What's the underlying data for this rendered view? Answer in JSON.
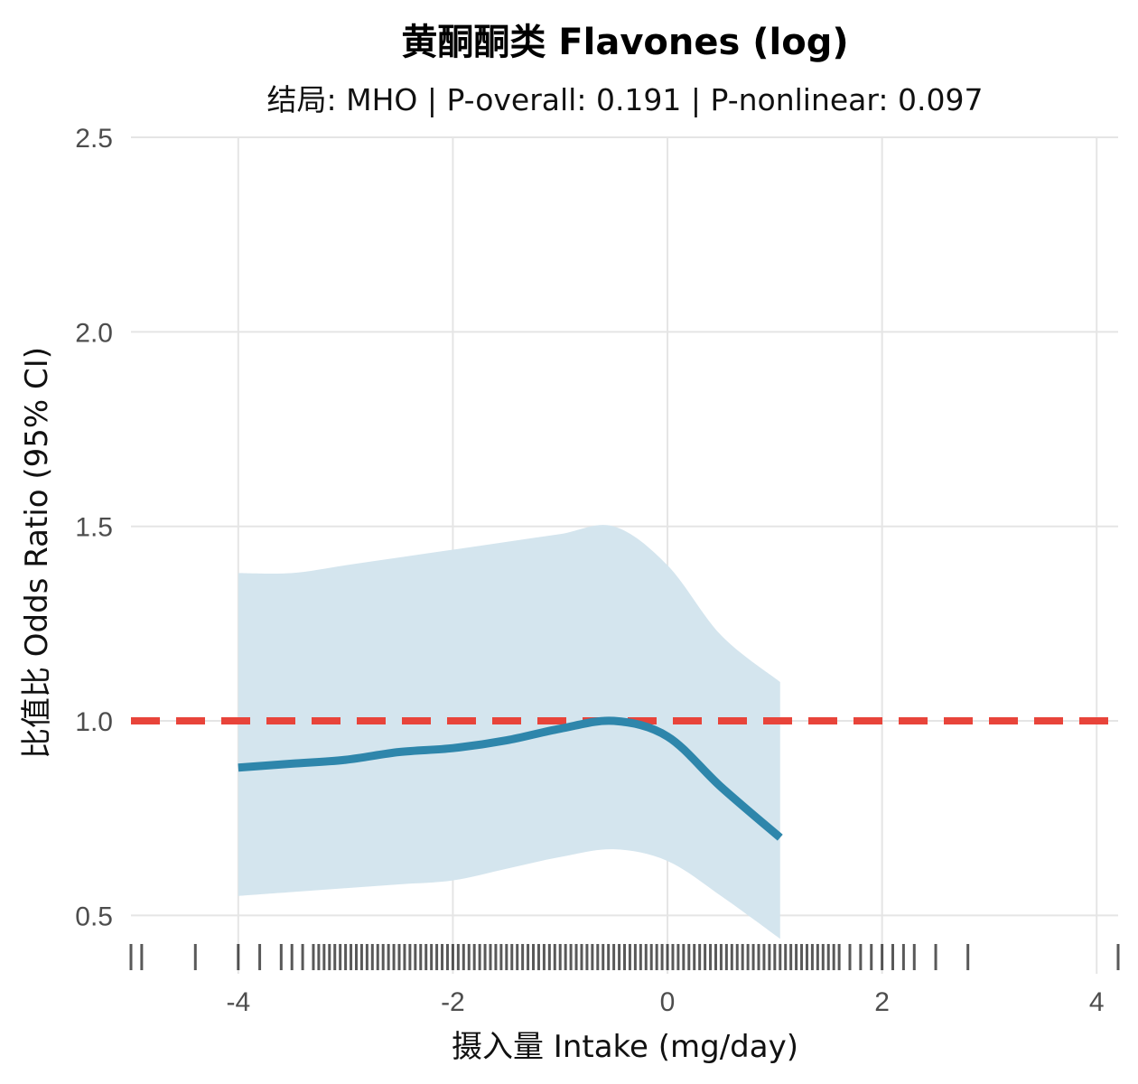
{
  "chart_data": {
    "type": "line",
    "title": "黄酮酮类 Flavones (log)",
    "subtitle": "结局: MHO | P-overall: 0.191 | P-nonlinear: 0.097",
    "xlabel": "摄入量 Intake (mg/day)",
    "ylabel": "比值比 Odds Ratio (95% CI)",
    "xlim": [
      -5.0,
      4.2
    ],
    "ylim": [
      0.35,
      2.5
    ],
    "x_ticks": [
      -4,
      -2,
      0,
      2,
      4
    ],
    "x_tick_labels": [
      "-4",
      "-2",
      "0",
      "2",
      "4"
    ],
    "y_ticks": [
      0.5,
      1.0,
      1.5,
      2.0,
      2.5
    ],
    "y_tick_labels": [
      "0.5",
      "1.0",
      "1.5",
      "2.0",
      "2.5"
    ],
    "grid": true,
    "reference_line": {
      "y": 1.0,
      "style": "dashed",
      "color": "#e8443a"
    },
    "colors": {
      "line": "#2e86ab",
      "band": "#d4e5ee",
      "rug": "#000000",
      "grid": "#e5e5e5"
    },
    "series": [
      {
        "x": [
          -4.0,
          -3.5,
          -3.0,
          -2.5,
          -2.0,
          -1.5,
          -1.0,
          -0.5,
          0.0,
          0.5,
          1.05
        ],
        "y": [
          0.88,
          0.89,
          0.9,
          0.92,
          0.93,
          0.95,
          0.98,
          1.0,
          0.96,
          0.83,
          0.7
        ],
        "lower": [
          0.55,
          0.56,
          0.57,
          0.58,
          0.59,
          0.62,
          0.65,
          0.67,
          0.64,
          0.55,
          0.44
        ],
        "upper": [
          1.38,
          1.38,
          1.4,
          1.42,
          1.44,
          1.46,
          1.48,
          1.5,
          1.4,
          1.22,
          1.1
        ]
      }
    ],
    "rug": [
      -5.0,
      -4.9,
      -4.4,
      -4.0,
      -3.8,
      -3.6,
      -3.5,
      -3.4,
      -3.3,
      -3.25,
      -3.2,
      -3.15,
      -3.1,
      -3.05,
      -3.0,
      -2.95,
      -2.9,
      -2.85,
      -2.8,
      -2.75,
      -2.7,
      -2.65,
      -2.6,
      -2.55,
      -2.5,
      -2.45,
      -2.4,
      -2.35,
      -2.3,
      -2.25,
      -2.2,
      -2.15,
      -2.1,
      -2.05,
      -2.0,
      -1.95,
      -1.9,
      -1.85,
      -1.8,
      -1.75,
      -1.7,
      -1.65,
      -1.6,
      -1.55,
      -1.5,
      -1.45,
      -1.4,
      -1.35,
      -1.3,
      -1.25,
      -1.2,
      -1.15,
      -1.1,
      -1.05,
      -1.0,
      -0.95,
      -0.9,
      -0.85,
      -0.8,
      -0.75,
      -0.7,
      -0.65,
      -0.6,
      -0.55,
      -0.5,
      -0.45,
      -0.4,
      -0.35,
      -0.3,
      -0.25,
      -0.2,
      -0.15,
      -0.1,
      -0.05,
      0.0,
      0.05,
      0.1,
      0.15,
      0.2,
      0.25,
      0.3,
      0.35,
      0.4,
      0.45,
      0.5,
      0.55,
      0.6,
      0.65,
      0.7,
      0.75,
      0.8,
      0.85,
      0.9,
      0.95,
      1.0,
      1.05,
      1.1,
      1.15,
      1.2,
      1.25,
      1.3,
      1.35,
      1.4,
      1.45,
      1.5,
      1.55,
      1.6,
      1.7,
      1.8,
      1.9,
      2.0,
      2.1,
      2.2,
      2.3,
      2.5,
      2.8,
      4.2
    ]
  }
}
